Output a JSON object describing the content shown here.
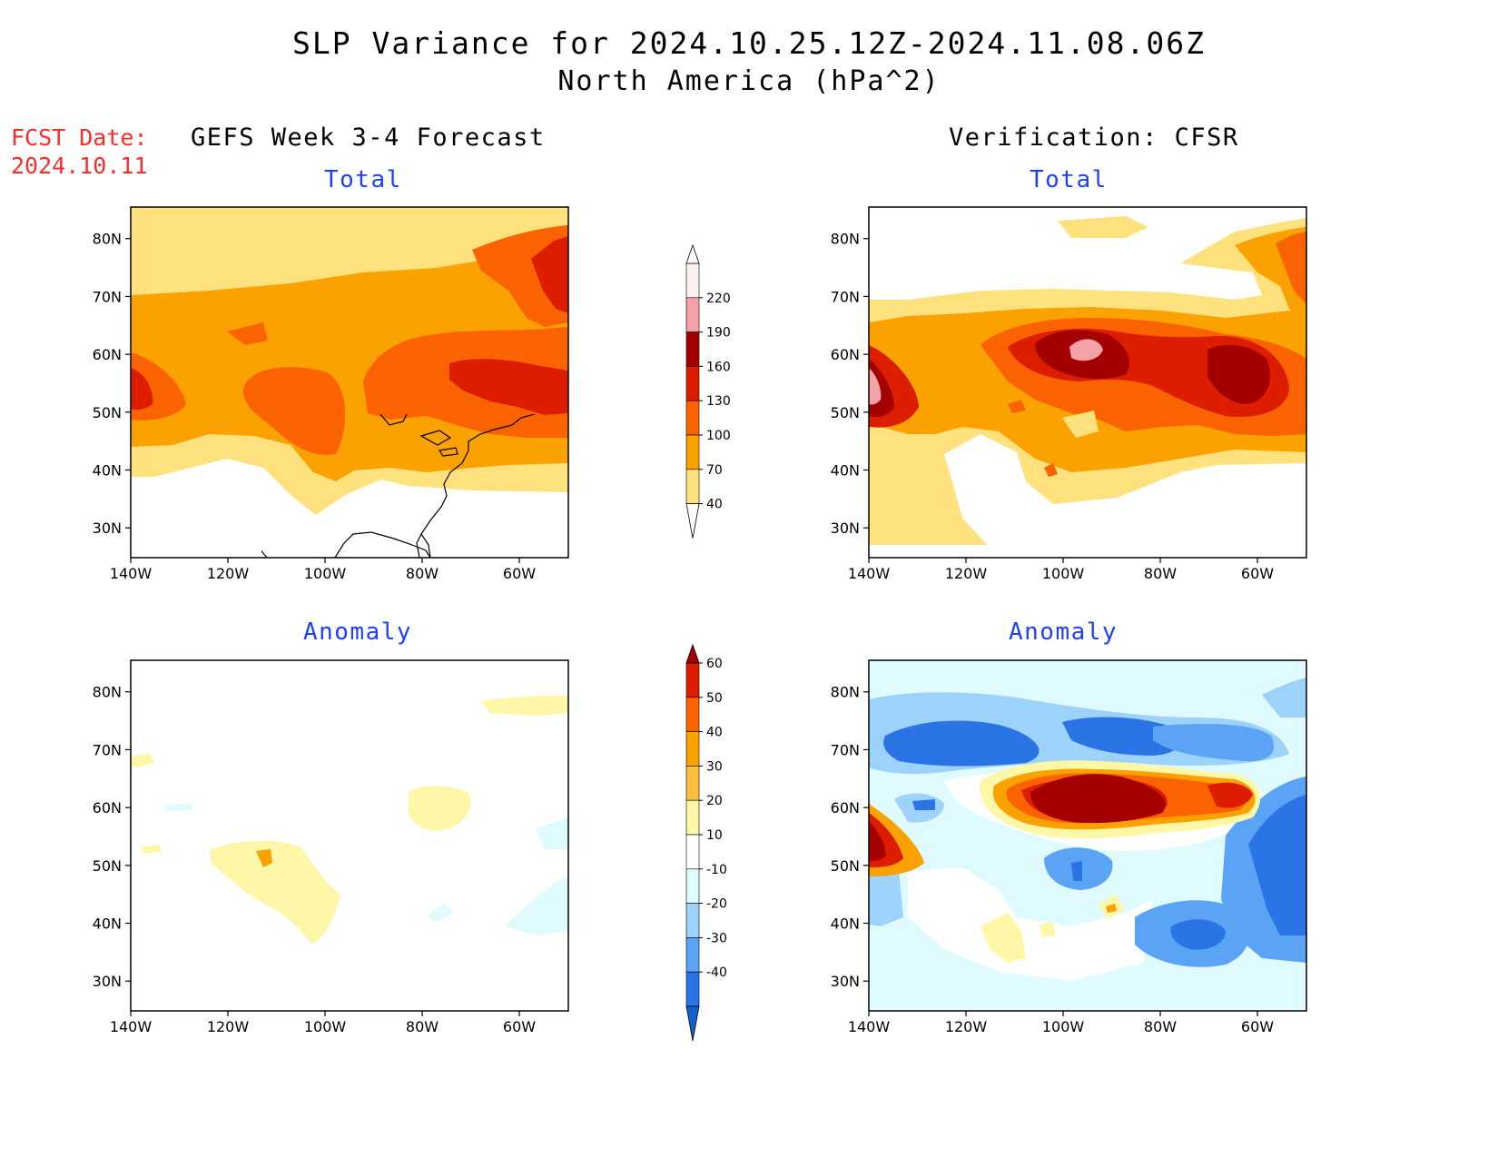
{
  "title": "SLP Variance for 2024.10.25.12Z-2024.11.08.06Z",
  "subtitle": "North America (hPa^2)",
  "fcst_label": "FCST Date:",
  "fcst_date": "2024.10.11",
  "left_header": "GEFS Week 3-4 Forecast",
  "right_header": "Verification: CFSR",
  "panel_titles": {
    "total": "Total",
    "anomaly": "Anomaly"
  },
  "lat_labels": [
    "80N",
    "70N",
    "60N",
    "50N",
    "40N",
    "30N"
  ],
  "lon_labels": [
    "140W",
    "120W",
    "100W",
    "80W",
    "60W"
  ],
  "total_colorbar": {
    "labels": [
      "220",
      "190",
      "160",
      "130",
      "100",
      "70",
      "40"
    ],
    "colors": [
      "#fff0f0",
      "#f4a1a7",
      "#a30000",
      "#dc1d00",
      "#fb6300",
      "#fba100",
      "#ffe27d"
    ]
  },
  "anomaly_colorbar": {
    "labels": [
      "60",
      "50",
      "40",
      "30",
      "20",
      "10",
      "-10",
      "-20",
      "-30",
      "-40"
    ],
    "colors": [
      "#a50000",
      "#dc1d00",
      "#fb6300",
      "#fba100",
      "#fbbf40",
      "#fff7a8",
      "#ffffff",
      "#dffbff",
      "#9dd2fb",
      "#5aa3f5",
      "#2a74e6",
      "#1460cf"
    ]
  }
}
